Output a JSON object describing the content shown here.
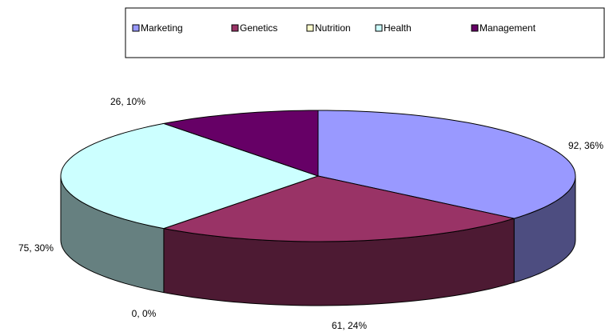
{
  "chart_data": {
    "type": "pie",
    "categories": [
      "Marketing",
      "Genetics",
      "Nutrition",
      "Health",
      "Management"
    ],
    "values": [
      92,
      61,
      0,
      75,
      26
    ],
    "value_labels": [
      "92, 36%",
      "61, 24%",
      "0, 0%",
      "75, 30%",
      "26, 10%"
    ],
    "colors": [
      "#9999ff",
      "#993366",
      "#ffffcc",
      "#ccffff",
      "#660066"
    ],
    "legend": "top"
  }
}
